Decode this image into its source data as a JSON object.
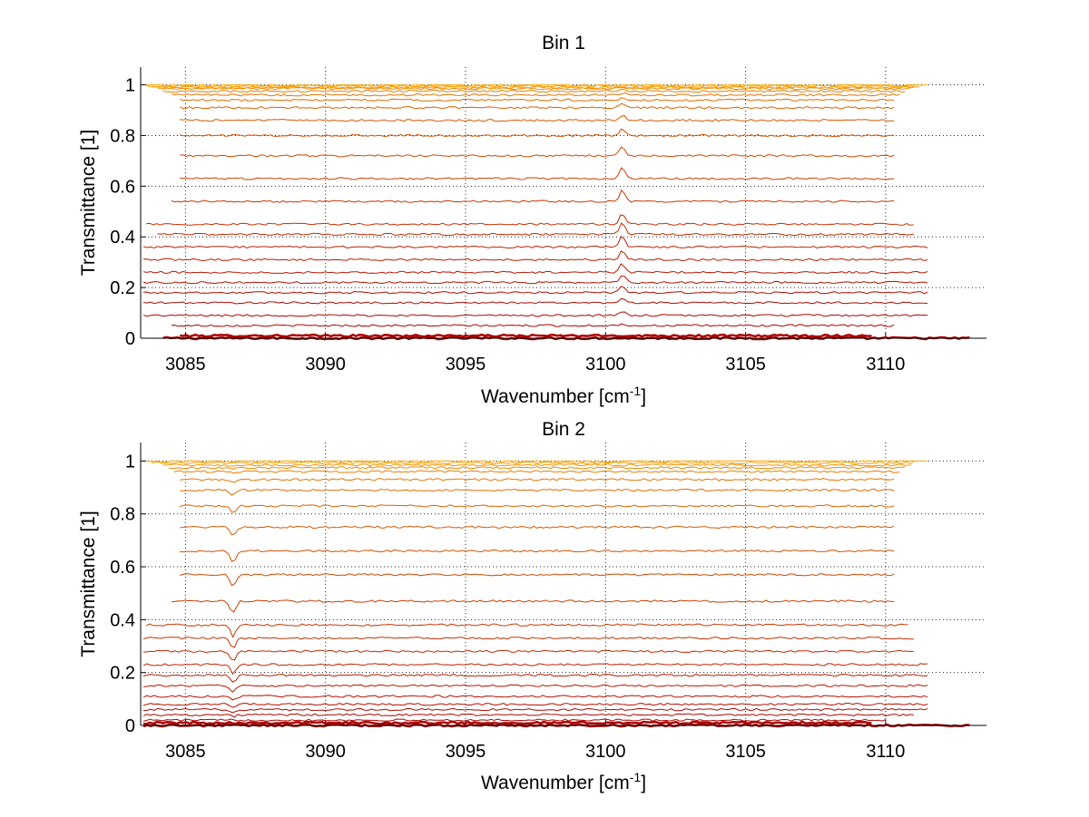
{
  "chart_data": [
    {
      "type": "line",
      "title": "Bin 1",
      "xlabel": "Wavenumber [cm",
      "xlabel_sup": "-1",
      "xlabel_end": "]",
      "ylabel": "Transmittance [1]",
      "xlim": [
        3083.4,
        3113.6
      ],
      "ylim": [
        0,
        1.07
      ],
      "xticks": [
        3085,
        3090,
        3095,
        3100,
        3105,
        3110
      ],
      "xtick_labels": [
        "3085",
        "3090",
        "3095",
        "3100",
        "3105",
        "3110"
      ],
      "yticks": [
        0,
        0.2,
        0.4,
        0.6,
        0.8,
        1
      ],
      "ytick_labels": [
        "0",
        "0.2",
        "0.4",
        "0.6",
        "0.8",
        "1"
      ],
      "grid": true,
      "feature_wavenumber": 3100.6,
      "feature_type": "peak",
      "series_color_low": "#aa0000",
      "series_color_high": "#ffaa00",
      "series": [
        {
          "x_start": 3084.2,
          "x_end": 3113.0,
          "y": 0.0
        },
        {
          "x_start": 3084.8,
          "x_end": 3109.5,
          "y": 0.01
        },
        {
          "x_start": 3084.5,
          "x_end": 3110.3,
          "y": 0.05
        },
        {
          "x_start": 3083.5,
          "x_end": 3111.5,
          "y": 0.09
        },
        {
          "x_start": 3083.5,
          "x_end": 3111.5,
          "y": 0.14
        },
        {
          "x_start": 3083.5,
          "x_end": 3111.5,
          "y": 0.18
        },
        {
          "x_start": 3083.5,
          "x_end": 3111.5,
          "y": 0.22
        },
        {
          "x_start": 3083.5,
          "x_end": 3111.5,
          "y": 0.26
        },
        {
          "x_start": 3083.5,
          "x_end": 3111.5,
          "y": 0.31
        },
        {
          "x_start": 3083.5,
          "x_end": 3111.5,
          "y": 0.36
        },
        {
          "x_start": 3084.0,
          "x_end": 3111.0,
          "y": 0.41
        },
        {
          "x_start": 3083.6,
          "x_end": 3111.0,
          "y": 0.45
        },
        {
          "x_start": 3084.5,
          "x_end": 3110.3,
          "y": 0.54
        },
        {
          "x_start": 3084.8,
          "x_end": 3110.3,
          "y": 0.63
        },
        {
          "x_start": 3084.8,
          "x_end": 3110.3,
          "y": 0.72
        },
        {
          "x_start": 3084.8,
          "x_end": 3110.3,
          "y": 0.8
        },
        {
          "x_start": 3084.8,
          "x_end": 3110.3,
          "y": 0.86
        },
        {
          "x_start": 3084.8,
          "x_end": 3110.3,
          "y": 0.91
        },
        {
          "x_start": 3084.8,
          "x_end": 3110.3,
          "y": 0.94
        },
        {
          "x_start": 3084.5,
          "x_end": 3110.5,
          "y": 0.96
        },
        {
          "x_start": 3084.2,
          "x_end": 3110.7,
          "y": 0.975
        },
        {
          "x_start": 3084.0,
          "x_end": 3110.9,
          "y": 0.985
        },
        {
          "x_start": 3083.8,
          "x_end": 3111.0,
          "y": 0.99
        },
        {
          "x_start": 3083.6,
          "x_end": 3111.2,
          "y": 0.995
        },
        {
          "x_start": 3083.6,
          "x_end": 3111.5,
          "y": 1.0
        }
      ]
    },
    {
      "type": "line",
      "title": "Bin 2",
      "xlabel": "Wavenumber [cm",
      "xlabel_sup": "-1",
      "xlabel_end": "]",
      "ylabel": "Transmittance [1]",
      "xlim": [
        3083.4,
        3113.6
      ],
      "ylim": [
        0,
        1.07
      ],
      "xticks": [
        3085,
        3090,
        3095,
        3100,
        3105,
        3110
      ],
      "xtick_labels": [
        "3085",
        "3090",
        "3095",
        "3100",
        "3105",
        "3110"
      ],
      "yticks": [
        0,
        0.2,
        0.4,
        0.6,
        0.8,
        1
      ],
      "ytick_labels": [
        "0",
        "0.2",
        "0.4",
        "0.6",
        "0.8",
        "1"
      ],
      "grid": true,
      "feature_wavenumber": 3086.7,
      "feature_type": "dip",
      "series_color_low": "#aa0000",
      "series_color_high": "#ffaa00",
      "series": [
        {
          "x_start": 3083.5,
          "x_end": 3113.0,
          "y": 0.0
        },
        {
          "x_start": 3083.5,
          "x_end": 3109.5,
          "y": 0.01
        },
        {
          "x_start": 3083.5,
          "x_end": 3110.0,
          "y": 0.02
        },
        {
          "x_start": 3083.5,
          "x_end": 3111.0,
          "y": 0.04
        },
        {
          "x_start": 3083.5,
          "x_end": 3111.5,
          "y": 0.06
        },
        {
          "x_start": 3083.5,
          "x_end": 3111.5,
          "y": 0.08
        },
        {
          "x_start": 3083.5,
          "x_end": 3111.5,
          "y": 0.11
        },
        {
          "x_start": 3083.5,
          "x_end": 3111.5,
          "y": 0.15
        },
        {
          "x_start": 3083.5,
          "x_end": 3111.5,
          "y": 0.19
        },
        {
          "x_start": 3083.5,
          "x_end": 3111.5,
          "y": 0.23
        },
        {
          "x_start": 3083.5,
          "x_end": 3111.0,
          "y": 0.28
        },
        {
          "x_start": 3083.5,
          "x_end": 3111.0,
          "y": 0.33
        },
        {
          "x_start": 3083.6,
          "x_end": 3110.8,
          "y": 0.38
        },
        {
          "x_start": 3084.5,
          "x_end": 3110.3,
          "y": 0.47
        },
        {
          "x_start": 3084.8,
          "x_end": 3110.3,
          "y": 0.57
        },
        {
          "x_start": 3084.8,
          "x_end": 3110.3,
          "y": 0.66
        },
        {
          "x_start": 3084.8,
          "x_end": 3110.3,
          "y": 0.75
        },
        {
          "x_start": 3084.8,
          "x_end": 3110.3,
          "y": 0.83
        },
        {
          "x_start": 3084.8,
          "x_end": 3110.3,
          "y": 0.89
        },
        {
          "x_start": 3084.8,
          "x_end": 3110.3,
          "y": 0.93
        },
        {
          "x_start": 3084.6,
          "x_end": 3110.5,
          "y": 0.96
        },
        {
          "x_start": 3084.4,
          "x_end": 3110.7,
          "y": 0.975
        },
        {
          "x_start": 3084.2,
          "x_end": 3110.9,
          "y": 0.985
        },
        {
          "x_start": 3083.8,
          "x_end": 3111.0,
          "y": 0.993
        },
        {
          "x_start": 3083.6,
          "x_end": 3111.5,
          "y": 1.0
        }
      ]
    }
  ]
}
